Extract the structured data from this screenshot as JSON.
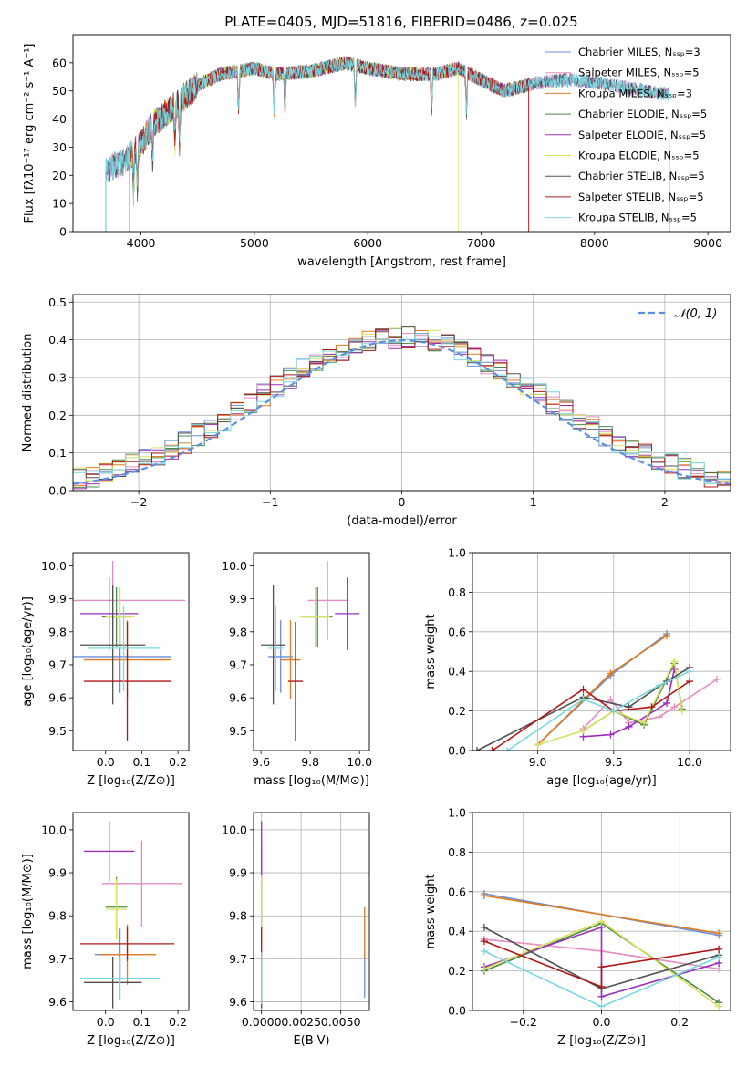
{
  "figure": {
    "title": "PLATE=0405, MJD=51816, FIBERID=0486, z=0.025"
  },
  "colors": {
    "series": [
      "#6a8fd8",
      "#e68bc3",
      "#e07b1f",
      "#4a8a4a",
      "#9a2fb8",
      "#d9e05a",
      "#505050",
      "#b01818",
      "#78d8e0"
    ],
    "grid": "#b0b0b0",
    "normal_curve": "#5b8fe0"
  },
  "chart_data": [
    {
      "id": "spectrum",
      "type": "line",
      "xlabel": "wavelength [Angstrom, rest frame]",
      "ylabel": "Flux [fλ10⁻¹⁷ erg cm⁻² s⁻¹ A⁻¹]",
      "xlim": [
        3400,
        9200
      ],
      "ylim": [
        0,
        70
      ],
      "xticks": [
        4000,
        5000,
        6000,
        7000,
        8000,
        9000
      ],
      "yticks": [
        0,
        10,
        20,
        30,
        40,
        50,
        60
      ],
      "grid": false,
      "legend_position": "top-right",
      "legend": [
        "Chabrier MILES, Nₛₛₚ=3",
        "Salpeter MILES, Nₛₛₚ=5",
        "Kroupa MILES, Nₛₛₚ=3",
        "Chabrier ELODIE, Nₛₛₚ=5",
        "Salpeter ELODIE, Nₛₛₚ=5",
        "Kroupa ELODIE, Nₛₛₚ=5",
        "Chabrier STELIB, Nₛₛₚ=5",
        "Salpeter STELIB, Nₛₛₚ=5",
        "Kroupa STELIB, Nₛₛₚ=5"
      ],
      "continuum": {
        "x": [
          3700,
          3850,
          4000,
          4100,
          4300,
          4500,
          4700,
          5000,
          5200,
          5500,
          5800,
          6000,
          6300,
          6600,
          6800,
          7000,
          7200,
          7500,
          7800,
          8000,
          8300,
          8600
        ],
        "y": [
          22,
          25,
          31,
          38,
          45,
          52,
          56,
          58,
          56,
          57,
          60,
          58,
          56,
          56,
          58,
          54,
          50,
          53,
          54,
          53,
          51,
          49
        ]
      },
      "x_ranges": [
        [
          3690,
          8660
        ],
        [
          3690,
          8660
        ],
        [
          3900,
          7420
        ],
        [
          3900,
          7420
        ],
        [
          3900,
          7420
        ],
        [
          3900,
          6800
        ],
        [
          3690,
          8660
        ],
        [
          3900,
          7420
        ],
        [
          3690,
          8660
        ]
      ]
    },
    {
      "id": "residuals",
      "type": "histogram",
      "xlabel": "(data-model)/error",
      "ylabel": "Normed distribution",
      "xlim": [
        -2.5,
        2.5
      ],
      "ylim": [
        0,
        0.52
      ],
      "xticks": [
        -2,
        -1,
        0,
        1,
        2
      ],
      "yticks": [
        0.0,
        0.1,
        0.2,
        0.3,
        0.4,
        0.5
      ],
      "grid": true,
      "legend_position": "top-right",
      "legend": [
        "𝒩(0, 1)"
      ],
      "bin_width": 0.1,
      "bin_start": -2.5
    },
    {
      "id": "age-vs-Z",
      "type": "errorbar",
      "xlabel": "Z [log₁₀(Z/Z⊙)]",
      "ylabel": "age  [log₁₀(age/yr)]",
      "xlim": [
        -0.09,
        0.23
      ],
      "ylim": [
        9.44,
        10.04
      ],
      "xticks": [
        0.0,
        0.1,
        0.2
      ],
      "yticks": [
        9.5,
        9.6,
        9.7,
        9.8,
        9.9,
        10.0
      ],
      "grid": false,
      "points": [
        {
          "x": 0.04,
          "xerr": 0.14,
          "y": 9.725,
          "yerr": 0.11
        },
        {
          "x": 0.02,
          "xerr": 0.2,
          "y": 9.895,
          "yerr": 0.12
        },
        {
          "x": 0.06,
          "xerr": 0.12,
          "y": 9.715,
          "yerr": 0.12
        },
        {
          "x": 0.03,
          "xerr": 0.04,
          "y": 9.845,
          "yerr": 0.09
        },
        {
          "x": 0.01,
          "xerr": 0.08,
          "y": 9.855,
          "yerr": 0.11
        },
        {
          "x": 0.04,
          "xerr": 0.04,
          "y": 9.845,
          "yerr": 0.09
        },
        {
          "x": 0.02,
          "xerr": 0.09,
          "y": 9.76,
          "yerr": 0.18
        },
        {
          "x": 0.06,
          "xerr": 0.12,
          "y": 9.65,
          "yerr": 0.18
        },
        {
          "x": 0.05,
          "xerr": 0.1,
          "y": 9.75,
          "yerr": 0.13
        }
      ]
    },
    {
      "id": "age-vs-mass",
      "type": "errorbar",
      "xlabel": "mass [log₁₀(M/M⊙)]",
      "ylabel": "",
      "xlim": [
        9.57,
        10.04
      ],
      "ylim": [
        9.44,
        10.04
      ],
      "xticks": [
        9.6,
        9.8,
        10.0
      ],
      "yticks": [
        9.5,
        9.6,
        9.7,
        9.8,
        9.9,
        10.0
      ],
      "grid": false,
      "points": [
        {
          "x": 9.68,
          "xerr": 0.05,
          "y": 9.725,
          "yerr": 0.11
        },
        {
          "x": 9.87,
          "xerr": 0.08,
          "y": 9.895,
          "yerr": 0.12
        },
        {
          "x": 9.72,
          "xerr": 0.04,
          "y": 9.715,
          "yerr": 0.12
        },
        {
          "x": 9.83,
          "xerr": 0.06,
          "y": 9.845,
          "yerr": 0.09
        },
        {
          "x": 9.95,
          "xerr": 0.05,
          "y": 9.855,
          "yerr": 0.11
        },
        {
          "x": 9.82,
          "xerr": 0.06,
          "y": 9.845,
          "yerr": 0.09
        },
        {
          "x": 9.65,
          "xerr": 0.05,
          "y": 9.76,
          "yerr": 0.18
        },
        {
          "x": 9.74,
          "xerr": 0.03,
          "y": 9.65,
          "yerr": 0.18
        },
        {
          "x": 9.66,
          "xerr": 0.03,
          "y": 9.75,
          "yerr": 0.13
        }
      ]
    },
    {
      "id": "weight-vs-age",
      "type": "line",
      "xlabel": "age  [log₁₀(age/yr)]",
      "ylabel": "mass weight",
      "xlim": [
        8.57,
        10.27
      ],
      "ylim": [
        0,
        1
      ],
      "xticks": [
        9.0,
        9.5,
        10.0
      ],
      "yticks": [
        0.0,
        0.2,
        0.4,
        0.6,
        0.8,
        1.0
      ],
      "grid": true,
      "series": [
        {
          "x": [
            9.0,
            9.48,
            9.85
          ],
          "y": [
            0.03,
            0.38,
            0.59
          ]
        },
        {
          "x": [
            9.3,
            9.48,
            9.6,
            9.8,
            9.9,
            10.18
          ],
          "y": [
            0.11,
            0.26,
            0.14,
            0.17,
            0.22,
            0.36
          ]
        },
        {
          "x": [
            9.0,
            9.48,
            9.85
          ],
          "y": [
            0.03,
            0.39,
            0.58
          ]
        },
        {
          "x": [
            9.3,
            9.5,
            9.7,
            9.9,
            9.95
          ],
          "y": [
            0.1,
            0.2,
            0.13,
            0.44,
            0.21
          ]
        },
        {
          "x": [
            9.3,
            9.48,
            9.6,
            9.85,
            9.9
          ],
          "y": [
            0.07,
            0.08,
            0.12,
            0.24,
            0.41
          ]
        },
        {
          "x": [
            9.0,
            9.3,
            9.5,
            9.7,
            9.9,
            9.95
          ],
          "y": [
            0.03,
            0.1,
            0.2,
            0.14,
            0.45,
            0.2
          ]
        },
        {
          "x": [
            8.6,
            9.3,
            9.6,
            9.85,
            10.0
          ],
          "y": [
            0.0,
            0.27,
            0.22,
            0.35,
            0.42
          ]
        },
        {
          "x": [
            8.7,
            9.3,
            9.5,
            9.75,
            10.0
          ],
          "y": [
            0.0,
            0.31,
            0.2,
            0.22,
            0.35
          ]
        },
        {
          "x": [
            8.8,
            9.3,
            9.5,
            9.8,
            10.0
          ],
          "y": [
            0.0,
            0.26,
            0.2,
            0.33,
            0.4
          ]
        }
      ]
    },
    {
      "id": "mass-vs-Z",
      "type": "errorbar",
      "xlabel": "Z [log₁₀(Z/Z⊙)]",
      "ylabel": "mass [log₁₀(M/M⊙)]",
      "xlim": [
        -0.09,
        0.23
      ],
      "ylim": [
        9.58,
        10.04
      ],
      "xticks": [
        0.0,
        0.1,
        0.2
      ],
      "yticks": [
        9.6,
        9.7,
        9.8,
        9.9,
        10.0
      ],
      "grid": false,
      "points": [
        {
          "x": 0.04,
          "xerr": 0.07,
          "y": 9.71,
          "yerr": 0.06
        },
        {
          "x": 0.1,
          "xerr": 0.11,
          "y": 9.875,
          "yerr": 0.1
        },
        {
          "x": 0.06,
          "xerr": 0.08,
          "y": 9.71,
          "yerr": 0.07
        },
        {
          "x": 0.03,
          "xerr": 0.03,
          "y": 9.82,
          "yerr": 0.07
        },
        {
          "x": 0.01,
          "xerr": 0.07,
          "y": 9.95,
          "yerr": 0.07
        },
        {
          "x": 0.03,
          "xerr": 0.03,
          "y": 9.815,
          "yerr": 0.07
        },
        {
          "x": 0.02,
          "xerr": 0.08,
          "y": 9.645,
          "yerr": 0.06
        },
        {
          "x": 0.06,
          "xerr": 0.13,
          "y": 9.735,
          "yerr": 0.04
        },
        {
          "x": 0.04,
          "xerr": 0.11,
          "y": 9.655,
          "yerr": 0.05
        }
      ]
    },
    {
      "id": "mass-vs-EBV",
      "type": "errorbar",
      "xlabel": "E(B-V)",
      "ylabel": "",
      "xlim": [
        -0.0005,
        0.0068
      ],
      "ylim": [
        9.58,
        10.04
      ],
      "xticks": [
        0.0,
        0.0025,
        0.005
      ],
      "xtick_labels": [
        "0.0000",
        "0.0025",
        "0.0050"
      ],
      "yticks": [
        9.6,
        9.7,
        9.8,
        9.9,
        10.0
      ],
      "grid": true,
      "points": [
        {
          "x": 0.0065,
          "xerr": 0,
          "y": 9.66,
          "yerr": 0.05
        },
        {
          "x": 0.0,
          "xerr": 0,
          "y": 9.875,
          "yerr": 0.1
        },
        {
          "x": 0.0065,
          "xerr": 0,
          "y": 9.76,
          "yerr": 0.06
        },
        {
          "x": 0.0,
          "xerr": 0,
          "y": 9.82,
          "yerr": 0.07
        },
        {
          "x": 0.0,
          "xerr": 0,
          "y": 9.95,
          "yerr": 0.07
        },
        {
          "x": 0.0,
          "xerr": 0,
          "y": 9.815,
          "yerr": 0.08
        },
        {
          "x": 0.0,
          "xerr": 0,
          "y": 9.645,
          "yerr": 0.06
        },
        {
          "x": 0.0,
          "xerr": 0,
          "y": 9.735,
          "yerr": 0.04
        },
        {
          "x": 0.0,
          "xerr": 0,
          "y": 9.655,
          "yerr": 0.06
        }
      ]
    },
    {
      "id": "weight-vs-Z",
      "type": "line",
      "xlabel": "Z [log₁₀(Z/Z⊙)]",
      "ylabel": "mass weight",
      "xlim": [
        -0.33,
        0.33
      ],
      "ylim": [
        0,
        1
      ],
      "xticks": [
        -0.2,
        0.0,
        0.2
      ],
      "yticks": [
        0.0,
        0.2,
        0.4,
        0.6,
        0.8,
        1.0
      ],
      "grid": true,
      "series": [
        {
          "x": [
            -0.3,
            0.3
          ],
          "y": [
            0.59,
            0.38
          ]
        },
        {
          "x": [
            -0.3,
            0.0,
            0.3
          ],
          "y": [
            0.36,
            0.3,
            0.21
          ]
        },
        {
          "x": [
            -0.3,
            0.3
          ],
          "y": [
            0.58,
            0.39
          ]
        },
        {
          "x": [
            -0.3,
            0.0,
            0.3
          ],
          "y": [
            0.2,
            0.44,
            0.04
          ]
        },
        {
          "x": [
            -0.3,
            0.0,
            0.0,
            0.3
          ],
          "y": [
            0.22,
            0.42,
            0.07,
            0.24
          ]
        },
        {
          "x": [
            -0.3,
            0.0,
            0.3
          ],
          "y": [
            0.21,
            0.45,
            0.02
          ]
        },
        {
          "x": [
            -0.3,
            0.0,
            0.3
          ],
          "y": [
            0.42,
            0.11,
            0.28
          ]
        },
        {
          "x": [
            -0.3,
            0.0,
            0.0,
            0.3
          ],
          "y": [
            0.35,
            0.12,
            0.22,
            0.31
          ]
        },
        {
          "x": [
            -0.3,
            0.0,
            0.3
          ],
          "y": [
            0.3,
            0.02,
            0.27
          ]
        }
      ]
    }
  ]
}
